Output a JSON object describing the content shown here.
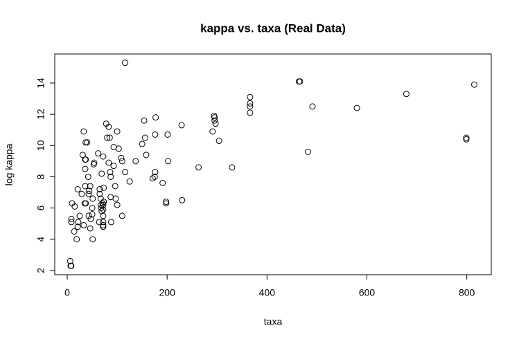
{
  "chart_data": {
    "type": "scatter",
    "title": "kappa vs. taxa (Real Data)",
    "x_label": "taxa",
    "y_label": "log kappa",
    "x": [
      6,
      7,
      8,
      9.7,
      15,
      8.3,
      8.3,
      14,
      19,
      21,
      22,
      21,
      25,
      29,
      31,
      33,
      35,
      37,
      37,
      33,
      36,
      36,
      36,
      37,
      40,
      42,
      43,
      44,
      46,
      43,
      47,
      46,
      50,
      50,
      51,
      53,
      54,
      51,
      62,
      64,
      65,
      65,
      67,
      68,
      68,
      69,
      71,
      69,
      72,
      73,
      72,
      72,
      72,
      72,
      72,
      72,
      73,
      78,
      80,
      83,
      83,
      85,
      86,
      87,
      87,
      88,
      93,
      93,
      96,
      97,
      100,
      100,
      103,
      108,
      110,
      110,
      116,
      116,
      125,
      137,
      150,
      154,
      156,
      158,
      171,
      175,
      176,
      176,
      177,
      191,
      198,
      198,
      201,
      202,
      229,
      230,
      263,
      291,
      294,
      295,
      295,
      297,
      304,
      330,
      366,
      366,
      366,
      366,
      464,
      466,
      482,
      491,
      580,
      679,
      799,
      799,
      815
    ],
    "y": [
      2.6,
      2.3,
      2.3,
      6.3,
      6.1,
      5.3,
      5.1,
      4.5,
      4.0,
      4.8,
      5.1,
      7.2,
      5.5,
      6.9,
      9.4,
      10.9,
      6.3,
      10.2,
      6.3,
      4.9,
      7.4,
      8.5,
      9.1,
      9.1,
      10.2,
      8.0,
      6.9,
      7.1,
      7.4,
      5.5,
      5.3,
      4.7,
      6.0,
      5.6,
      6.6,
      8.8,
      8.9,
      4.0,
      9.5,
      5.1,
      7.2,
      6.9,
      6.6,
      6.2,
      6.0,
      5.8,
      6.3,
      8.2,
      9.3,
      7.3,
      6.2,
      5.9,
      5.5,
      5.1,
      4.8,
      4.9,
      6.4,
      11.4,
      10.5,
      8.9,
      11.2,
      10.5,
      8.3,
      8.0,
      6.7,
      5.1,
      9.9,
      8.7,
      7.4,
      6.6,
      6.2,
      10.9,
      9.8,
      9.2,
      9.0,
      5.5,
      15.3,
      8.3,
      7.7,
      9.0,
      10.1,
      11.6,
      10.5,
      9.4,
      7.9,
      8.0,
      8.3,
      10.7,
      11.8,
      7.6,
      6.4,
      6.3,
      10.7,
      9.0,
      11.3,
      6.5,
      8.6,
      10.9,
      11.9,
      11.8,
      11.6,
      11.4,
      10.3,
      8.6,
      13.1,
      12.7,
      12.5,
      12.1,
      14.1,
      14.1,
      9.6,
      12.5,
      12.4,
      13.3,
      10.5,
      10.4,
      13.9
    ],
    "xlim": [
      -25,
      849
    ],
    "ylim": [
      1.73,
      15.86
    ],
    "xticks": [
      0,
      200,
      400,
      600,
      800
    ],
    "yticks": [
      2,
      4,
      6,
      8,
      10,
      12,
      14
    ],
    "color": "#000000"
  }
}
